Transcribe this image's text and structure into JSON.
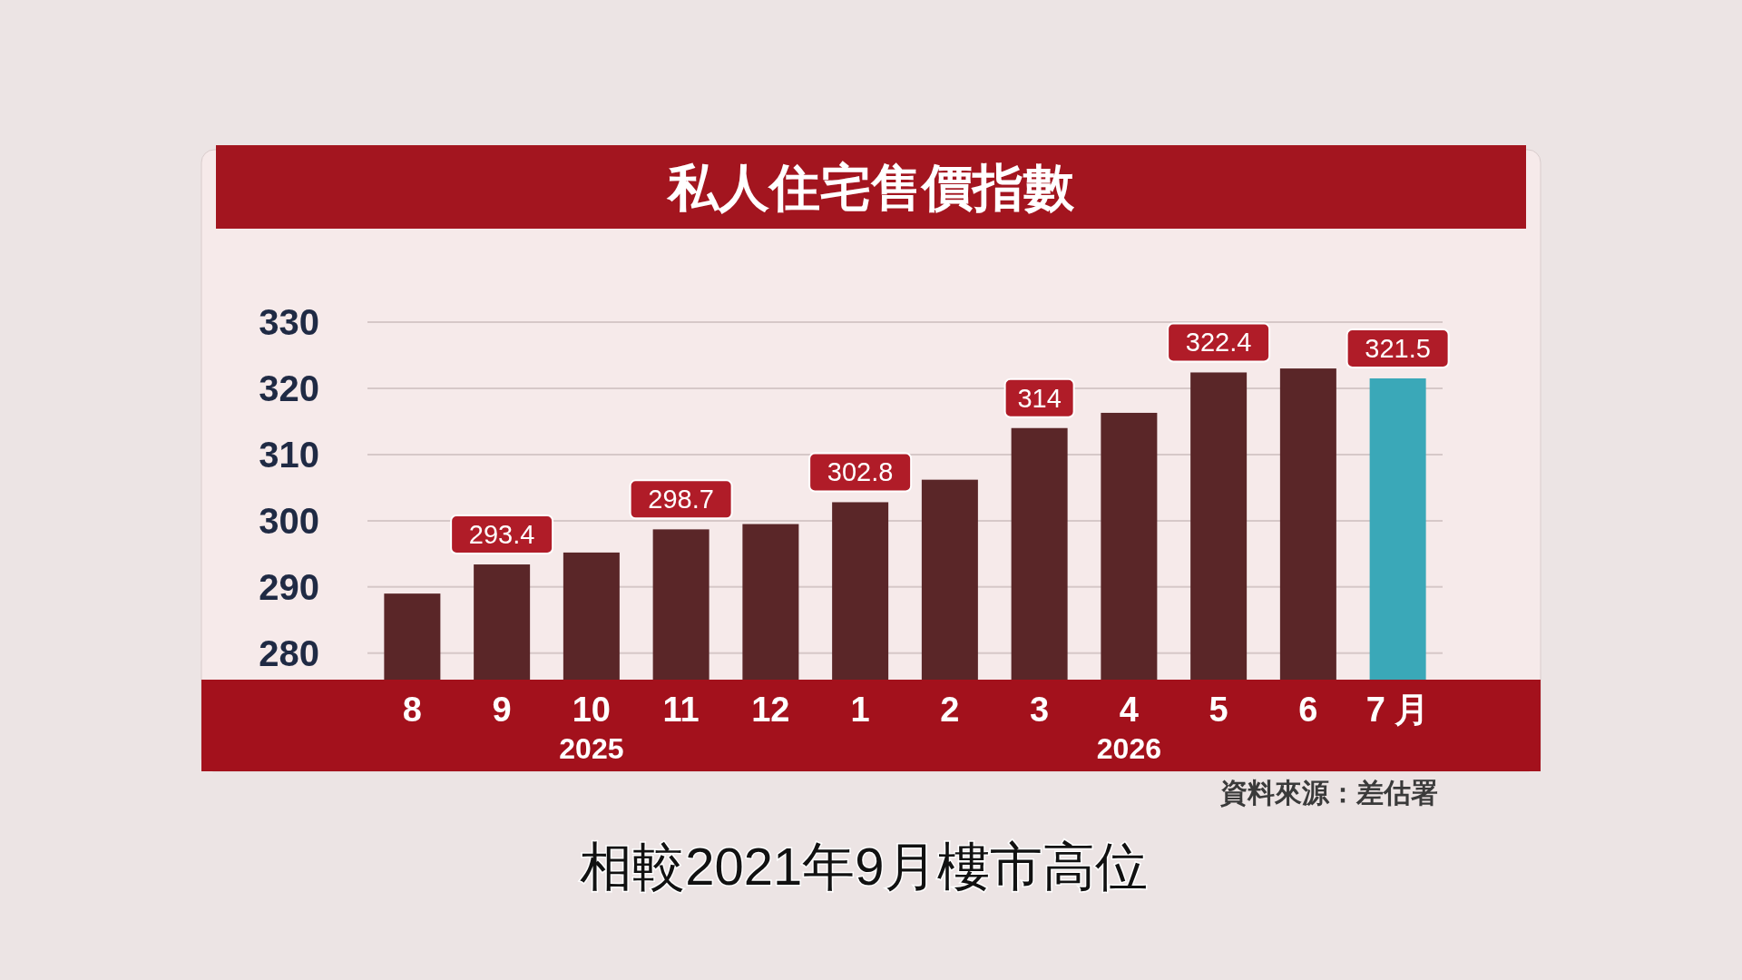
{
  "chart_data": {
    "type": "bar",
    "title": "私人住宅售價指數",
    "categories": [
      "8",
      "9",
      "10",
      "11",
      "12",
      "1",
      "2",
      "3",
      "4",
      "5",
      "6",
      "7 月"
    ],
    "values": [
      289,
      293.4,
      295.2,
      298.7,
      299.5,
      302.8,
      306.2,
      314,
      316.3,
      322.4,
      323,
      321.5
    ],
    "colors": [
      "#5a2628",
      "#5a2628",
      "#5a2628",
      "#5a2628",
      "#5a2628",
      "#5a2628",
      "#5a2628",
      "#5a2628",
      "#5a2628",
      "#5a2628",
      "#5a2628",
      "#3aa8b8"
    ],
    "value_labels": [
      null,
      "293.4",
      null,
      "298.7",
      null,
      "302.8",
      null,
      "314",
      null,
      "322.4",
      null,
      "321.5"
    ],
    "ylim": [
      276,
      330
    ],
    "yticks": [
      280,
      290,
      300,
      310,
      320,
      330
    ],
    "grid": "y",
    "annotations": [
      "2025",
      "2026",
      "資料來源：差估署",
      "相較2021年9月樓市高位"
    ]
  }
}
